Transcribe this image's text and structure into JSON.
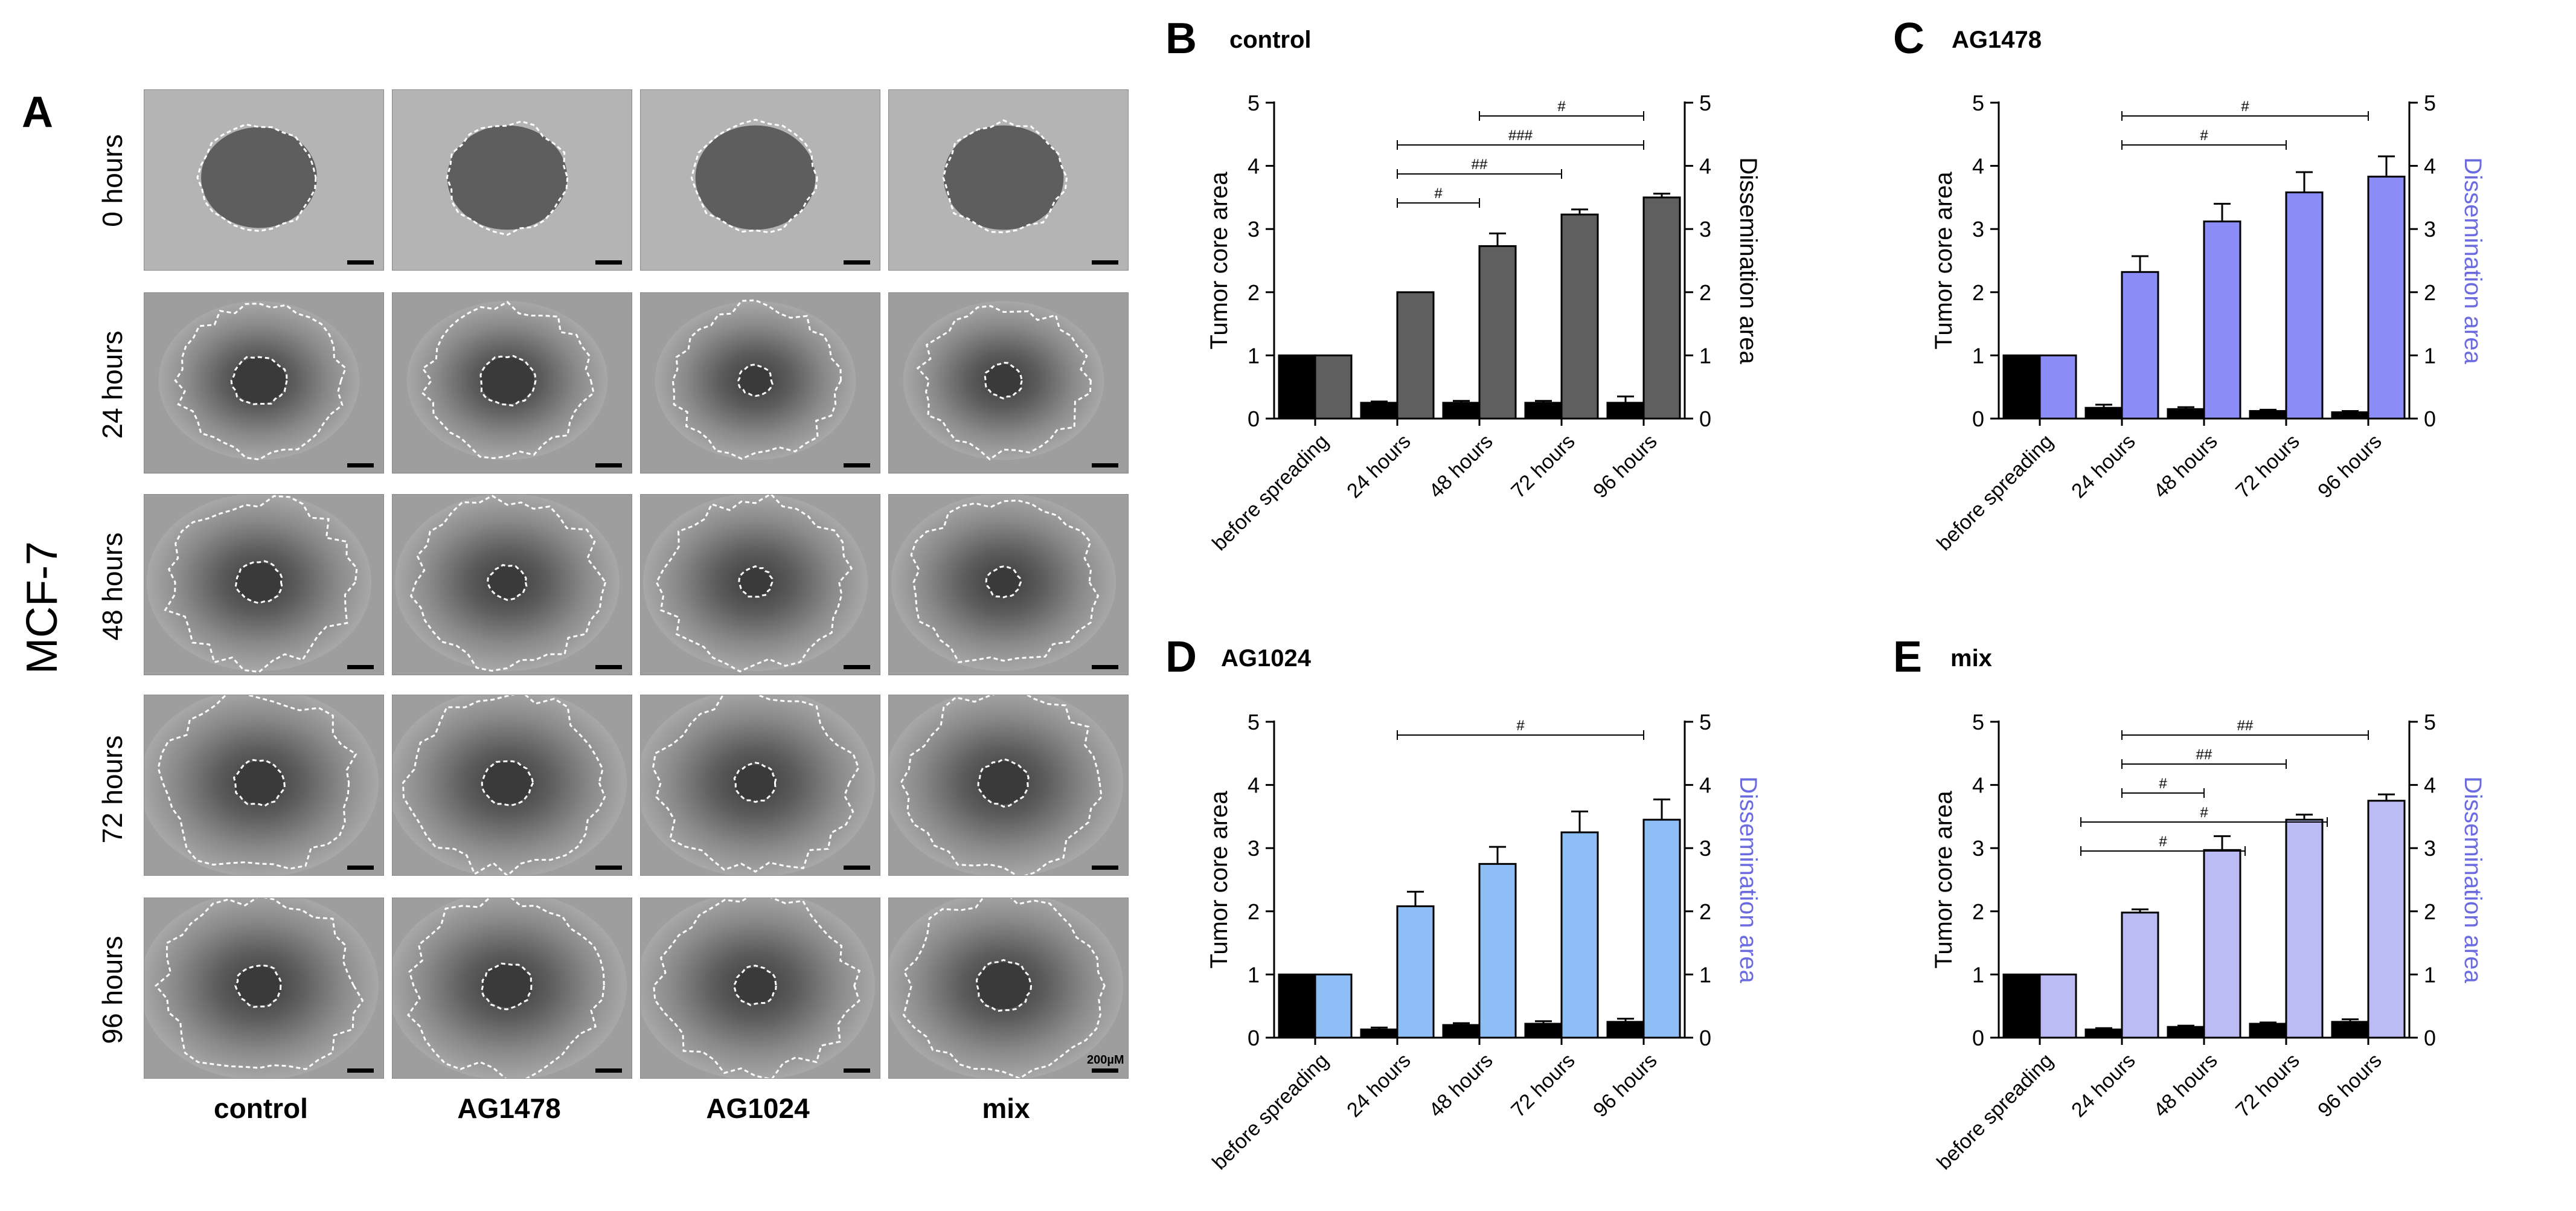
{
  "panel_a": {
    "letter": "A",
    "cell_line": "MCF-7",
    "rows": [
      "0 hours",
      "24 hours",
      "48 hours",
      "72 hours",
      "96 hours"
    ],
    "columns": [
      "control",
      "AG1478",
      "AG1024",
      "mix"
    ],
    "scale_bar": "200µM"
  },
  "colors": {
    "core_bar": "#000000",
    "control_bar": "#5f5f5f",
    "ag1478_bar": "#8c8cf7",
    "ag1024_bar": "#8fbdf5",
    "mix_bar": "#bcbcf5",
    "dissemination_axis_label_colored": "#6b6be0"
  },
  "chart_data": [
    {
      "type": "bar",
      "letter": "B",
      "title": "control",
      "ylabel": "Tumor core area",
      "y2label": "Dissemination area",
      "y2label_color": "#000000",
      "categories": [
        "before spreading",
        "24 hours",
        "48 hours",
        "72 hours",
        "96 hours"
      ],
      "ylim": [
        0,
        5
      ],
      "yticks": [
        "0",
        "1",
        "2",
        "3",
        "4",
        "5"
      ],
      "series": [
        {
          "values": [
            1,
            0.25,
            0.25,
            0.25,
            0.25
          ],
          "errors": [
            0,
            0.02,
            0.03,
            0.03,
            0.1
          ],
          "color": "#000000"
        },
        {
          "values": [
            1,
            2.0,
            2.73,
            3.23,
            3.5
          ],
          "errors": [
            0,
            0,
            0.2,
            0.08,
            0.06
          ],
          "color": "#5f5f5f"
        }
      ],
      "annotations": [
        {
          "label": "#",
          "from": 2,
          "to": 4
        },
        {
          "label": "###",
          "from": 1,
          "to": 4
        },
        {
          "label": "##",
          "from": 1,
          "to": 3
        },
        {
          "label": "#",
          "from": 1,
          "to": 2
        }
      ]
    },
    {
      "type": "bar",
      "letter": "C",
      "title": "AG1478",
      "ylabel": "Tumor core area",
      "y2label": "Dissemination area",
      "y2label_color": "#6b6be0",
      "categories": [
        "before spreading",
        "24 hours",
        "48 hours",
        "72 hours",
        "96 hours"
      ],
      "ylim": [
        0,
        5
      ],
      "yticks": [
        "0",
        "1",
        "2",
        "3",
        "4",
        "5"
      ],
      "series": [
        {
          "values": [
            1,
            0.17,
            0.15,
            0.12,
            0.1
          ],
          "errors": [
            0,
            0.05,
            0.03,
            0.02,
            0.02
          ],
          "color": "#000000"
        },
        {
          "values": [
            1,
            2.32,
            3.12,
            3.58,
            3.83
          ],
          "errors": [
            0,
            0.25,
            0.28,
            0.32,
            0.32
          ],
          "color": "#8c8cf7"
        }
      ],
      "annotations": [
        {
          "label": "#",
          "from": 1,
          "to": 4
        },
        {
          "label": "#",
          "from": 1,
          "to": 3
        }
      ]
    },
    {
      "type": "bar",
      "letter": "D",
      "title": "AG1024",
      "ylabel": "Tumor core area",
      "y2label": "Dissemination area",
      "y2label_color": "#6b6be0",
      "categories": [
        "before spreading",
        "24 hours",
        "48 hours",
        "72 hours",
        "96 hours"
      ],
      "ylim": [
        0,
        5
      ],
      "yticks": [
        "0",
        "1",
        "2",
        "3",
        "4",
        "5"
      ],
      "series": [
        {
          "values": [
            1,
            0.13,
            0.2,
            0.22,
            0.25
          ],
          "errors": [
            0,
            0.03,
            0.03,
            0.04,
            0.05
          ],
          "color": "#000000"
        },
        {
          "values": [
            1,
            2.08,
            2.75,
            3.25,
            3.45
          ],
          "errors": [
            0,
            0.23,
            0.27,
            0.33,
            0.32
          ],
          "color": "#8fbdf5"
        }
      ],
      "annotations": [
        {
          "label": "#",
          "from": 1,
          "to": 4
        }
      ]
    },
    {
      "type": "bar",
      "letter": "E",
      "title": "mix",
      "ylabel": "Tumor core area",
      "y2label": "Dissemination area",
      "y2label_color": "#6b6be0",
      "categories": [
        "before spreading",
        "24 hours",
        "48 hours",
        "72 hours",
        "96 hours"
      ],
      "ylim": [
        0,
        5
      ],
      "yticks": [
        "0",
        "1",
        "2",
        "3",
        "4",
        "5"
      ],
      "series": [
        {
          "values": [
            1,
            0.13,
            0.17,
            0.22,
            0.25
          ],
          "errors": [
            0,
            0.02,
            0.02,
            0.02,
            0.04
          ],
          "color": "#000000"
        },
        {
          "values": [
            1,
            1.98,
            2.97,
            3.45,
            3.75
          ],
          "errors": [
            0,
            0.05,
            0.22,
            0.08,
            0.1
          ],
          "color": "#bcbcf5"
        }
      ],
      "annotations": [
        {
          "label": "##",
          "from": 1,
          "to": 4
        },
        {
          "label": "##",
          "from": 1,
          "to": 3
        },
        {
          "label": "#",
          "from": 1,
          "to": 2
        },
        {
          "label": "#",
          "from": 0.5,
          "to": 3.5
        },
        {
          "label": "#",
          "from": 0.5,
          "to": 2.5
        }
      ]
    }
  ]
}
